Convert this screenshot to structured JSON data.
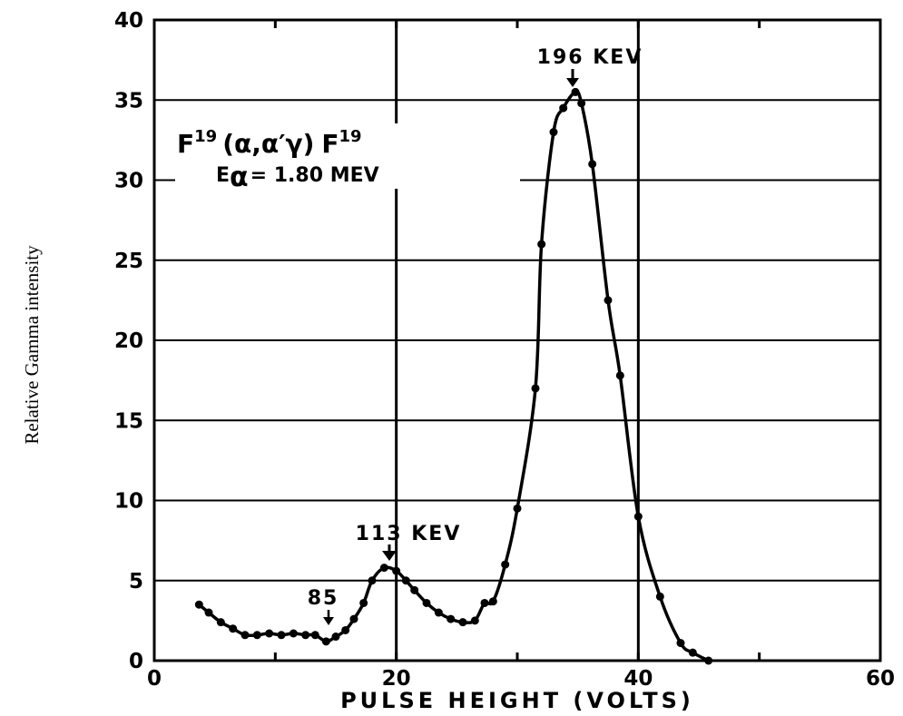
{
  "chart_data": {
    "type": "line",
    "title": "",
    "xlabel": "PULSE HEIGHT (VOLTS)",
    "ylabel": "Relative Gamma intensity",
    "xlim": [
      0,
      60
    ],
    "ylim": [
      0,
      40
    ],
    "x_ticks": [
      "0",
      "20",
      "40",
      "60"
    ],
    "y_ticks": [
      "0",
      "5",
      "10",
      "15",
      "20",
      "25",
      "30",
      "35",
      "40"
    ],
    "grid": "horizontal lines at every 5 units; vertical lines at 20 and 40",
    "series": [
      {
        "x": [
          3.7,
          4.5,
          5.5,
          6.5,
          7.5,
          8.5,
          9.5,
          10.5,
          11.5,
          12.5,
          13.3,
          14.2,
          15.0,
          15.8,
          16.5,
          17.3,
          18.0,
          19.0,
          20.0,
          20.8,
          21.5,
          22.5,
          23.5,
          24.5,
          25.5,
          26.5,
          27.3,
          28.0,
          29.0,
          30.0,
          31.5,
          32.0,
          33.0,
          33.8,
          34.8,
          35.3,
          36.2,
          37.5,
          38.5,
          40.0,
          41.8,
          43.5,
          44.5,
          45.8
        ],
        "y": [
          3.5,
          3.0,
          2.4,
          2.0,
          1.6,
          1.6,
          1.7,
          1.6,
          1.7,
          1.6,
          1.6,
          1.2,
          1.5,
          1.9,
          2.6,
          3.6,
          5.0,
          5.8,
          5.6,
          5.0,
          4.4,
          3.6,
          3.0,
          2.6,
          2.4,
          2.5,
          3.6,
          3.7,
          6.0,
          9.5,
          17.0,
          26.0,
          33.0,
          34.5,
          35.5,
          34.8,
          31.0,
          22.5,
          17.8,
          9.0,
          4.0,
          1.1,
          0.5,
          0.0
        ]
      }
    ]
  },
  "annotations": {
    "peak_196": "196 KEV",
    "peak_113": "113 KEV",
    "peak_85": "85",
    "reaction": {
      "f1": "F",
      "s1": "19",
      "mid": "(α,α′γ)",
      "f2": "F",
      "s2": "19"
    },
    "energy": {
      "e": "E",
      "alpha": "α",
      "rest": "= 1.80 MEV"
    }
  },
  "colors": {
    "line": "#000000",
    "grid": "#000000",
    "background": "#ffffff"
  }
}
